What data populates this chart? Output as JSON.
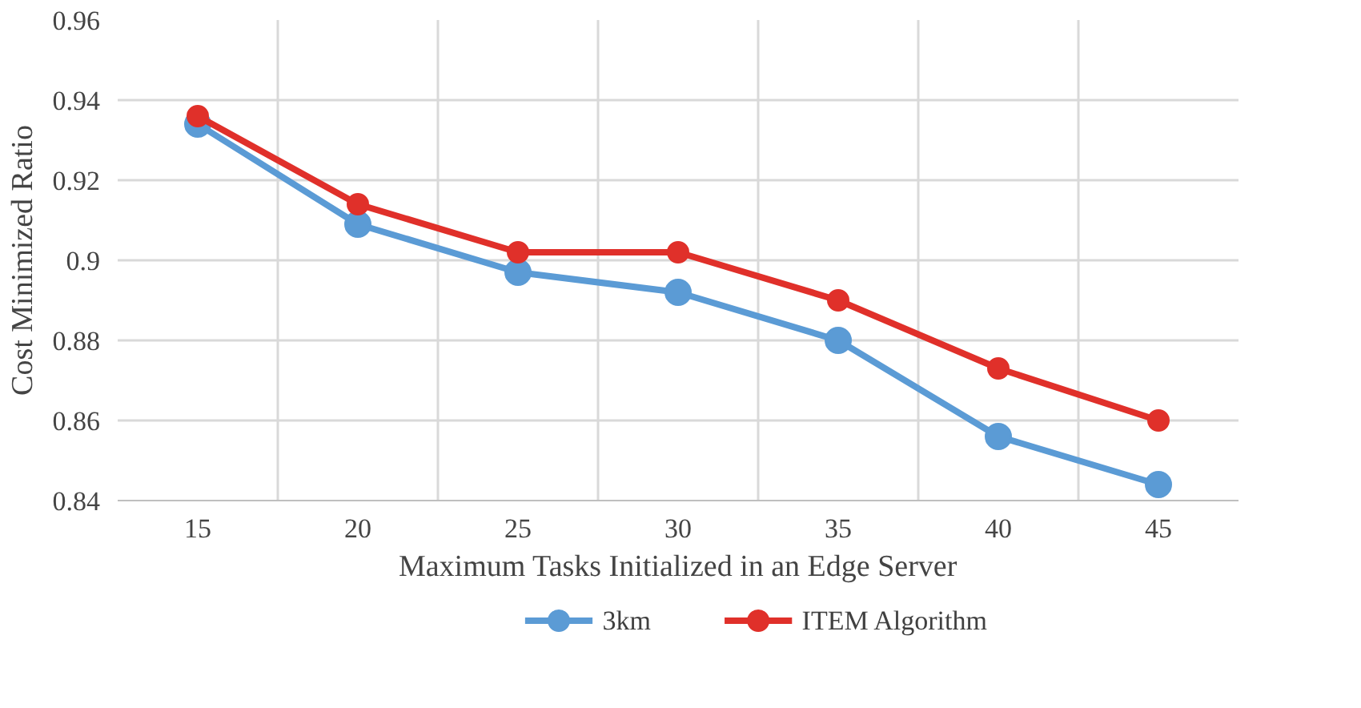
{
  "chart_data": {
    "type": "line",
    "xlabel": "Maximum Tasks Initialized in an Edge Server",
    "ylabel": "Cost Minimized Ratio",
    "categories": [
      "15",
      "20",
      "25",
      "30",
      "35",
      "40",
      "45"
    ],
    "series": [
      {
        "name": "3km",
        "color": "#5b9bd5",
        "values": [
          0.934,
          0.909,
          0.897,
          0.892,
          0.88,
          0.856,
          0.844
        ]
      },
      {
        "name": "ITEM Algorithm",
        "color": "#e0302a",
        "values": [
          0.936,
          0.914,
          0.902,
          0.902,
          0.89,
          0.873,
          0.86
        ]
      }
    ],
    "ylim": [
      0.84,
      0.96
    ],
    "yticks": [
      0.84,
      0.86,
      0.88,
      0.9,
      0.92,
      0.94,
      0.96
    ],
    "grid": true,
    "legend": "bottom",
    "marker": "circle",
    "line_style": "solid"
  }
}
